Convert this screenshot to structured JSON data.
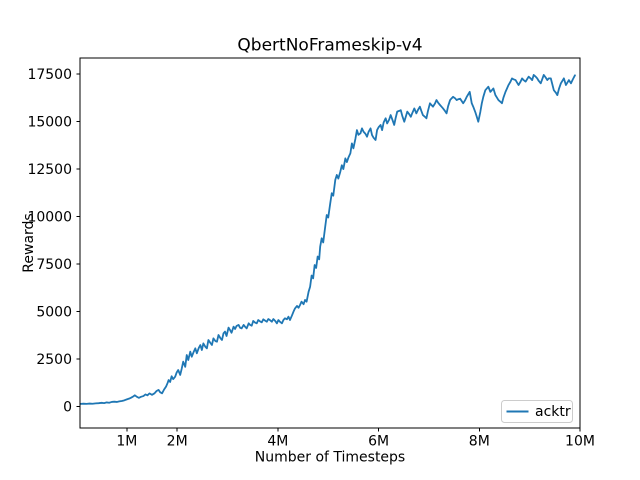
{
  "chart_data": {
    "type": "line",
    "title": "QbertNoFrameskip-v4",
    "xlabel": "Number of Timesteps",
    "ylabel": "Rewards",
    "x_unit": "M = millions of timesteps",
    "grid": false,
    "xlim": [
      0.07,
      10.0
    ],
    "ylim": [
      -1120,
      18342
    ],
    "x_tick_values": [
      1,
      2,
      4,
      6,
      8,
      10
    ],
    "x_tick_labels": [
      "1M",
      "2M",
      "4M",
      "6M",
      "8M",
      "10M"
    ],
    "y_tick_values": [
      0,
      2500,
      5000,
      7500,
      10000,
      12500,
      15000,
      17500
    ],
    "y_tick_labels": [
      "0",
      "2500",
      "5000",
      "7500",
      "10000",
      "12500",
      "15000",
      "17500"
    ],
    "legend": {
      "position": "lower right",
      "entries": [
        "acktr"
      ]
    },
    "colors": {
      "line": "#1f77b4",
      "axes": "#000000",
      "background": "#ffffff",
      "legend_border": "#cccccc"
    },
    "series": [
      {
        "name": "acktr",
        "color": "#1f77b4",
        "points": [
          [
            0.08,
            150
          ],
          [
            0.14,
            160
          ],
          [
            0.2,
            150
          ],
          [
            0.26,
            165
          ],
          [
            0.32,
            155
          ],
          [
            0.38,
            175
          ],
          [
            0.44,
            185
          ],
          [
            0.5,
            205
          ],
          [
            0.55,
            190
          ],
          [
            0.6,
            225
          ],
          [
            0.65,
            210
          ],
          [
            0.7,
            250
          ],
          [
            0.75,
            265
          ],
          [
            0.8,
            250
          ],
          [
            0.85,
            280
          ],
          [
            0.9,
            300
          ],
          [
            0.95,
            335
          ],
          [
            1.0,
            385
          ],
          [
            1.05,
            430
          ],
          [
            1.09,
            480
          ],
          [
            1.13,
            545
          ],
          [
            1.16,
            600
          ],
          [
            1.2,
            520
          ],
          [
            1.24,
            465
          ],
          [
            1.28,
            520
          ],
          [
            1.33,
            560
          ],
          [
            1.37,
            645
          ],
          [
            1.41,
            600
          ],
          [
            1.45,
            700
          ],
          [
            1.5,
            625
          ],
          [
            1.55,
            705
          ],
          [
            1.59,
            825
          ],
          [
            1.63,
            885
          ],
          [
            1.66,
            765
          ],
          [
            1.7,
            705
          ],
          [
            1.74,
            905
          ],
          [
            1.78,
            1065
          ],
          [
            1.81,
            1250
          ],
          [
            1.83,
            1400
          ],
          [
            1.86,
            1300
          ],
          [
            1.89,
            1600
          ],
          [
            1.92,
            1450
          ],
          [
            1.96,
            1580
          ],
          [
            1.99,
            1800
          ],
          [
            2.02,
            1930
          ],
          [
            2.06,
            1670
          ],
          [
            2.09,
            2000
          ],
          [
            2.12,
            2370
          ],
          [
            2.16,
            2100
          ],
          [
            2.19,
            2720
          ],
          [
            2.22,
            2455
          ],
          [
            2.26,
            2895
          ],
          [
            2.29,
            2630
          ],
          [
            2.33,
            2900
          ],
          [
            2.36,
            3070
          ],
          [
            2.39,
            2810
          ],
          [
            2.43,
            3100
          ],
          [
            2.46,
            3245
          ],
          [
            2.49,
            2980
          ],
          [
            2.52,
            3330
          ],
          [
            2.56,
            3150
          ],
          [
            2.59,
            3070
          ],
          [
            2.62,
            3510
          ],
          [
            2.66,
            3350
          ],
          [
            2.69,
            3245
          ],
          [
            2.72,
            3595
          ],
          [
            2.76,
            3450
          ],
          [
            2.79,
            3420
          ],
          [
            2.82,
            3770
          ],
          [
            2.86,
            3600
          ],
          [
            2.89,
            3510
          ],
          [
            2.92,
            3860
          ],
          [
            2.95,
            3950
          ],
          [
            2.98,
            3720
          ],
          [
            3.02,
            4160
          ],
          [
            3.05,
            4030
          ],
          [
            3.08,
            3890
          ],
          [
            3.12,
            4210
          ],
          [
            3.15,
            4090
          ],
          [
            3.18,
            4250
          ],
          [
            3.22,
            4300
          ],
          [
            3.25,
            4150
          ],
          [
            3.28,
            4120
          ],
          [
            3.32,
            4300
          ],
          [
            3.35,
            4200
          ],
          [
            3.38,
            4120
          ],
          [
            3.42,
            4385
          ],
          [
            3.45,
            4300
          ],
          [
            3.48,
            4260
          ],
          [
            3.51,
            4510
          ],
          [
            3.55,
            4420
          ],
          [
            3.58,
            4385
          ],
          [
            3.61,
            4560
          ],
          [
            3.65,
            4480
          ],
          [
            3.68,
            4440
          ],
          [
            3.71,
            4595
          ],
          [
            3.75,
            4520
          ],
          [
            3.78,
            4470
          ],
          [
            3.81,
            4610
          ],
          [
            3.85,
            4540
          ],
          [
            3.88,
            4470
          ],
          [
            3.91,
            4610
          ],
          [
            3.95,
            4500
          ],
          [
            3.98,
            4385
          ],
          [
            4.01,
            4560
          ],
          [
            4.04,
            4470
          ],
          [
            4.08,
            4385
          ],
          [
            4.11,
            4560
          ],
          [
            4.14,
            4650
          ],
          [
            4.18,
            4600
          ],
          [
            4.21,
            4735
          ],
          [
            4.24,
            4560
          ],
          [
            4.28,
            4800
          ],
          [
            4.31,
            5000
          ],
          [
            4.34,
            5170
          ],
          [
            4.38,
            5300
          ],
          [
            4.41,
            5200
          ],
          [
            4.44,
            5350
          ],
          [
            4.47,
            5525
          ],
          [
            4.51,
            5390
          ],
          [
            4.54,
            5615
          ],
          [
            4.57,
            5525
          ],
          [
            4.61,
            6050
          ],
          [
            4.64,
            6310
          ],
          [
            4.67,
            6900
          ],
          [
            4.7,
            6750
          ],
          [
            4.73,
            7450
          ],
          [
            4.76,
            7300
          ],
          [
            4.79,
            7900
          ],
          [
            4.82,
            7750
          ],
          [
            4.84,
            8420
          ],
          [
            4.87,
            8860
          ],
          [
            4.9,
            8640
          ],
          [
            4.94,
            9470
          ],
          [
            4.97,
            10080
          ],
          [
            5.0,
            9950
          ],
          [
            5.04,
            10700
          ],
          [
            5.07,
            11230
          ],
          [
            5.1,
            11100
          ],
          [
            5.14,
            11930
          ],
          [
            5.17,
            12190
          ],
          [
            5.2,
            12000
          ],
          [
            5.24,
            12360
          ],
          [
            5.27,
            12700
          ],
          [
            5.3,
            12500
          ],
          [
            5.34,
            13060
          ],
          [
            5.37,
            12870
          ],
          [
            5.4,
            13100
          ],
          [
            5.44,
            13330
          ],
          [
            5.47,
            13850
          ],
          [
            5.5,
            13590
          ],
          [
            5.54,
            14100
          ],
          [
            5.57,
            14550
          ],
          [
            5.6,
            14300
          ],
          [
            5.64,
            14380
          ],
          [
            5.67,
            14640
          ],
          [
            5.7,
            14470
          ],
          [
            5.74,
            14350
          ],
          [
            5.77,
            14200
          ],
          [
            5.8,
            14450
          ],
          [
            5.84,
            14640
          ],
          [
            5.87,
            14290
          ],
          [
            5.9,
            14150
          ],
          [
            5.94,
            14030
          ],
          [
            5.97,
            14550
          ],
          [
            6.0,
            14700
          ],
          [
            6.04,
            14820
          ],
          [
            6.07,
            14550
          ],
          [
            6.1,
            14950
          ],
          [
            6.14,
            15170
          ],
          [
            6.17,
            14900
          ],
          [
            6.21,
            15100
          ],
          [
            6.24,
            15340
          ],
          [
            6.28,
            15050
          ],
          [
            6.31,
            14820
          ],
          [
            6.34,
            15200
          ],
          [
            6.37,
            15520
          ],
          [
            6.41,
            15560
          ],
          [
            6.44,
            15600
          ],
          [
            6.47,
            15300
          ],
          [
            6.51,
            14990
          ],
          [
            6.54,
            15250
          ],
          [
            6.57,
            15520
          ],
          [
            6.61,
            15380
          ],
          [
            6.64,
            15250
          ],
          [
            6.67,
            15450
          ],
          [
            6.71,
            15690
          ],
          [
            6.75,
            15430
          ],
          [
            6.78,
            15600
          ],
          [
            6.82,
            15780
          ],
          [
            6.85,
            15550
          ],
          [
            6.88,
            15340
          ],
          [
            6.92,
            15250
          ],
          [
            6.95,
            15170
          ],
          [
            6.98,
            15550
          ],
          [
            7.02,
            15960
          ],
          [
            7.05,
            15870
          ],
          [
            7.08,
            15780
          ],
          [
            7.12,
            15950
          ],
          [
            7.15,
            16130
          ],
          [
            7.18,
            16000
          ],
          [
            7.22,
            15870
          ],
          [
            7.25,
            15780
          ],
          [
            7.28,
            15690
          ],
          [
            7.32,
            15550
          ],
          [
            7.35,
            15430
          ],
          [
            7.38,
            15800
          ],
          [
            7.42,
            16130
          ],
          [
            7.45,
            16220
          ],
          [
            7.48,
            16300
          ],
          [
            7.52,
            16220
          ],
          [
            7.55,
            16130
          ],
          [
            7.58,
            16170
          ],
          [
            7.62,
            16200
          ],
          [
            7.65,
            16080
          ],
          [
            7.68,
            15960
          ],
          [
            7.72,
            16130
          ],
          [
            7.75,
            16300
          ],
          [
            7.78,
            16430
          ],
          [
            7.81,
            16560
          ],
          [
            7.85,
            15960
          ],
          [
            7.88,
            15780
          ],
          [
            7.92,
            15500
          ],
          [
            7.95,
            15250
          ],
          [
            7.98,
            14990
          ],
          [
            8.02,
            15500
          ],
          [
            8.05,
            15960
          ],
          [
            8.08,
            16300
          ],
          [
            8.12,
            16650
          ],
          [
            8.15,
            16740
          ],
          [
            8.18,
            16830
          ],
          [
            8.22,
            16560
          ],
          [
            8.25,
            16650
          ],
          [
            8.28,
            16740
          ],
          [
            8.32,
            16390
          ],
          [
            8.35,
            16260
          ],
          [
            8.38,
            16130
          ],
          [
            8.42,
            16040
          ],
          [
            8.45,
            15960
          ],
          [
            8.48,
            16260
          ],
          [
            8.52,
            16560
          ],
          [
            8.55,
            16740
          ],
          [
            8.58,
            16920
          ],
          [
            8.62,
            17100
          ],
          [
            8.65,
            17270
          ],
          [
            8.68,
            17220
          ],
          [
            8.72,
            17180
          ],
          [
            8.75,
            17050
          ],
          [
            8.78,
            16920
          ],
          [
            8.82,
            17100
          ],
          [
            8.85,
            17270
          ],
          [
            8.88,
            17180
          ],
          [
            8.92,
            17100
          ],
          [
            8.95,
            17230
          ],
          [
            8.98,
            17360
          ],
          [
            9.02,
            17270
          ],
          [
            9.05,
            17180
          ],
          [
            9.08,
            17450
          ],
          [
            9.12,
            17360
          ],
          [
            9.15,
            17270
          ],
          [
            9.18,
            17140
          ],
          [
            9.22,
            17010
          ],
          [
            9.25,
            17230
          ],
          [
            9.28,
            17450
          ],
          [
            9.32,
            17310
          ],
          [
            9.35,
            17180
          ],
          [
            9.38,
            17270
          ],
          [
            9.42,
            17270
          ],
          [
            9.45,
            16960
          ],
          [
            9.48,
            16650
          ],
          [
            9.52,
            16520
          ],
          [
            9.55,
            16390
          ],
          [
            9.58,
            16700
          ],
          [
            9.62,
            17010
          ],
          [
            9.65,
            17140
          ],
          [
            9.68,
            17270
          ],
          [
            9.72,
            16920
          ],
          [
            9.75,
            17050
          ],
          [
            9.78,
            17180
          ],
          [
            9.82,
            17010
          ],
          [
            9.86,
            17230
          ],
          [
            9.9,
            17430
          ]
        ]
      }
    ]
  }
}
